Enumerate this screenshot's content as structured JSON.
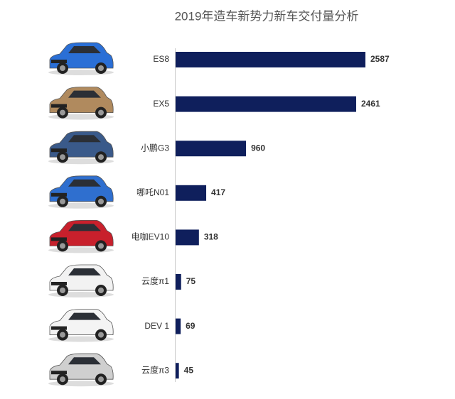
{
  "chart_data": {
    "type": "bar",
    "orientation": "horizontal",
    "title": "2019年造车新势力新车交付量分析",
    "categories": [
      "ES8",
      "EX5",
      "小鹏G3",
      "哪吒N01",
      "电咖EV10",
      "云度π1",
      "DEV 1",
      "云度π3"
    ],
    "values": [
      2587,
      2461,
      960,
      417,
      318,
      75,
      69,
      45
    ],
    "color": "#0f1f5c"
  }
}
